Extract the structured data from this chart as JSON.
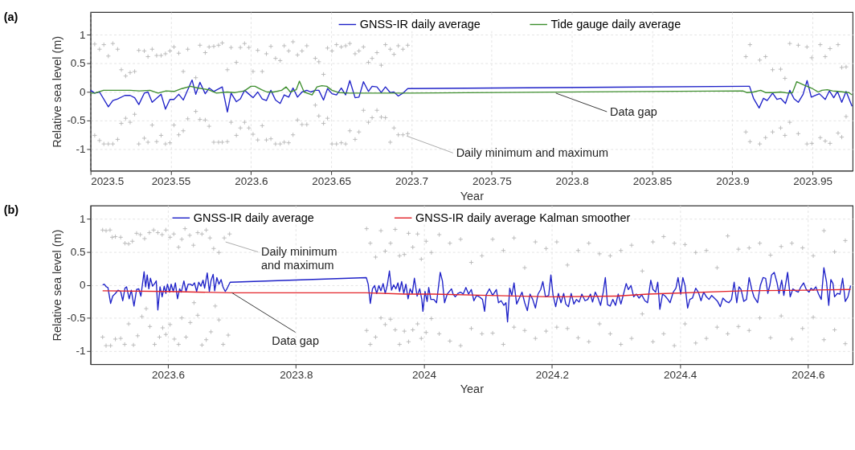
{
  "chart_data": [
    {
      "type": "line",
      "title": "(a)",
      "xlabel": "Year",
      "ylabel": "Relative sea level (m)",
      "xlim": [
        2023.5,
        2023.975
      ],
      "xticks": [
        2023.5,
        2023.55,
        2023.6,
        2023.65,
        2023.7,
        2023.75,
        2023.8,
        2023.85,
        2023.9,
        2023.95
      ],
      "ylim": [
        -1.38,
        1.4
      ],
      "yticks": [
        -1,
        -0.5,
        0,
        0.5,
        1
      ],
      "grid": true,
      "legend": "top",
      "series": [
        {
          "type": "scatter",
          "marker": "cross",
          "color": "#b4b4b4",
          "x": [
            2023.5026,
            2023.5056,
            2023.5083,
            2023.5111,
            2023.5139,
            2023.5169,
            2023.5192,
            2023.5219,
            2023.5247,
            2023.5275,
            2023.5301,
            2023.5335,
            2023.5358,
            2023.5384,
            2023.5412,
            2023.544,
            2023.5467,
            2023.5495,
            2023.552,
            2023.555,
            2023.5578,
            2023.5606,
            2023.5656,
            2023.5682,
            2023.5715,
            2023.5739,
            2023.5768,
            2023.5798,
            2023.5821,
            2023.5853,
            2023.5876,
            2023.5909,
            2023.5934,
            2023.596,
            2023.5987,
            2023.6013,
            2023.6042,
            2023.607,
            2023.6096,
            2023.6124,
            2023.6153,
            2023.6182,
            2023.6207,
            2023.6235,
            2023.6262,
            2023.629,
            2023.6318,
            2023.6348,
            2023.6401,
            2023.6423,
            2023.6452,
            2023.6477,
            2023.6505,
            2023.6533,
            2023.6563,
            2023.659,
            2023.6616,
            2023.6649,
            2023.6673,
            2023.6701,
            2023.6732,
            2023.6755,
            2023.6785,
            2023.6812,
            2023.6838,
            2023.6868,
            2023.6891,
            2023.6918,
            2023.6947,
            2023.6977,
            2023.9084,
            2023.911,
            2023.9171,
            2023.9207,
            2023.9251,
            2023.9301,
            2023.9328,
            2023.9358,
            2023.9411,
            2023.9465,
            2023.9495,
            2023.9548,
            2023.9579,
            2023.9609,
            2023.9659,
            2023.9682,
            2023.9709
          ],
          "values": [
            0.84,
            0.75,
            0.83,
            0.63,
            0.85,
            0.75,
            0.39,
            0.28,
            0.34,
            0.36,
            0.73,
            0.72,
            0.62,
            0.75,
            0.64,
            0.64,
            0.67,
            0.72,
            0.79,
            0.68,
            0.36,
            0.75,
            0.25,
            0.82,
            0.69,
            0.79,
            0.8,
            0.82,
            0.86,
            0.39,
            0.78,
            0.52,
            0.78,
            0.85,
            0.78,
            0.36,
            0.73,
            0.36,
            0.67,
            0.8,
            0.59,
            0.55,
            0.81,
            0.72,
            0.88,
            0.65,
            0.72,
            0.81,
            0.59,
            0.53,
            0.31,
            0.77,
            0.72,
            0.83,
            0.79,
            0.81,
            0.85,
            0.67,
            0.72,
            0.79,
            0.52,
            0.59,
            0.69,
            0.47,
            0.83,
            0.75,
            0.66,
            0.81,
            0.75,
            0.82,
            0.62,
            0.83,
            0.56,
            0.62,
            0.39,
            0.4,
            0.24,
            0.85,
            0.82,
            0.79,
            0.6,
            0.83,
            0.62,
            0.76,
            0.83,
            0.43,
            0.44
          ]
        },
        {
          "type": "scatter",
          "marker": "cross",
          "color": "#b4b4b4",
          "x": [
            2023.5026,
            2023.5056,
            2023.5083,
            2023.5111,
            2023.5139,
            2023.5169,
            2023.5192,
            2023.5219,
            2023.5247,
            2023.5275,
            2023.5301,
            2023.5335,
            2023.5358,
            2023.5384,
            2023.5412,
            2023.544,
            2023.5467,
            2023.5495,
            2023.552,
            2023.555,
            2023.5578,
            2023.5606,
            2023.5656,
            2023.5682,
            2023.5715,
            2023.5739,
            2023.5768,
            2023.5798,
            2023.5821,
            2023.5853,
            2023.5876,
            2023.5909,
            2023.5934,
            2023.596,
            2023.5987,
            2023.6013,
            2023.6042,
            2023.607,
            2023.6096,
            2023.6124,
            2023.6153,
            2023.6182,
            2023.6207,
            2023.6235,
            2023.6262,
            2023.629,
            2023.6318,
            2023.6348,
            2023.6401,
            2023.6423,
            2023.6452,
            2023.6477,
            2023.6505,
            2023.6533,
            2023.6563,
            2023.659,
            2023.6616,
            2023.6649,
            2023.6673,
            2023.6701,
            2023.6732,
            2023.6755,
            2023.6785,
            2023.6812,
            2023.6838,
            2023.6868,
            2023.6891,
            2023.6918,
            2023.6947,
            2023.6977,
            2023.9084,
            2023.911,
            2023.9171,
            2023.9207,
            2023.9251,
            2023.9301,
            2023.9328,
            2023.9358,
            2023.9411,
            2023.9465,
            2023.9495,
            2023.9548,
            2023.9579,
            2023.9609,
            2023.9659,
            2023.9682,
            2023.9709
          ],
          "values": [
            -0.76,
            -0.85,
            -0.91,
            -0.91,
            -0.91,
            -0.83,
            -0.55,
            -0.46,
            -0.53,
            -0.39,
            -0.91,
            -0.81,
            -0.88,
            -0.58,
            -0.87,
            -0.76,
            -0.91,
            -0.89,
            -0.58,
            -0.75,
            -0.68,
            -0.47,
            -0.34,
            -0.48,
            -0.49,
            -0.6,
            -0.88,
            -0.88,
            -0.88,
            -0.87,
            -0.53,
            -0.76,
            -0.63,
            -0.53,
            -0.63,
            -0.74,
            -0.84,
            -0.59,
            -0.84,
            -0.82,
            -0.91,
            -0.91,
            -0.88,
            -0.89,
            -0.75,
            -0.49,
            -0.57,
            -0.57,
            -0.23,
            -0.42,
            -0.55,
            -0.46,
            -0.91,
            -0.91,
            -0.89,
            -0.91,
            -0.68,
            -0.83,
            -0.7,
            -0.32,
            -0.53,
            -0.45,
            -0.32,
            -0.44,
            -0.45,
            -0.88,
            -0.63,
            -0.75,
            -0.75,
            -0.73,
            -0.7,
            -0.87,
            -0.91,
            -0.8,
            -0.7,
            -0.63,
            -0.76,
            -0.53,
            -0.73,
            -0.91,
            -0.9,
            -0.8,
            -0.86,
            -0.9,
            -0.72,
            -0.79,
            -0.43
          ]
        },
        {
          "name": "GNSS-IR daily average",
          "color": "#1f22c8",
          "x": [
            2023.5,
            2023.5026,
            2023.5056,
            2023.5111,
            2023.5139,
            2023.5169,
            2023.5214,
            2023.5247,
            2023.5275,
            2023.5301,
            2023.5335,
            2023.5358,
            2023.5384,
            2023.544,
            2023.5467,
            2023.5495,
            2023.552,
            2023.555,
            2023.5578,
            2023.5633,
            2023.5656,
            2023.5682,
            2023.5715,
            2023.5739,
            2023.5768,
            2023.5821,
            2023.5853,
            2023.5876,
            2023.5909,
            2023.5934,
            2023.596,
            2023.5984,
            2023.6013,
            2023.6042,
            2023.607,
            2023.6096,
            2023.6124,
            2023.6153,
            2023.6182,
            2023.6207,
            2023.6235,
            2023.6262,
            2023.629,
            2023.6318,
            2023.6348,
            2023.6373,
            2023.6401,
            2023.6423,
            2023.6452,
            2023.6477,
            2023.6505,
            2023.6533,
            2023.6563,
            2023.659,
            2023.6616,
            2023.6649,
            2023.6673,
            2023.6701,
            2023.6732,
            2023.6755,
            2023.6785,
            2023.6812,
            2023.6838,
            2023.6868,
            2023.6891,
            2023.6918,
            2023.6947,
            2023.6977,
            2023.909,
            2023.9107,
            2023.9132,
            2023.9167,
            2023.9194,
            2023.9217,
            2023.9251,
            2023.9278,
            2023.9301,
            2023.9331,
            2023.9358,
            2023.9385,
            2023.9411,
            2023.9441,
            2023.9466,
            2023.9492,
            2023.9542,
            2023.9579,
            2023.9605,
            2023.9632,
            2023.9655,
            2023.9682,
            2023.9709,
            2023.9746
          ],
          "values": [
            0.03,
            -0.02,
            0,
            -0.26,
            -0.15,
            -0.12,
            -0.06,
            -0.06,
            -0.1,
            -0.22,
            -0.02,
            0,
            -0.18,
            -0.04,
            -0.3,
            -0.13,
            -0.13,
            -0.04,
            -0.14,
            0.21,
            -0.04,
            0.17,
            -0.03,
            0.07,
            0.01,
            0.09,
            -0.35,
            -0.02,
            -0.17,
            -0.12,
            0.03,
            -0.03,
            -0.1,
            0,
            -0.12,
            -0.15,
            0.03,
            -0.14,
            -0.2,
            -0.05,
            -0.09,
            0.07,
            -0.09,
            0,
            0.03,
            0,
            0.03,
            0.03,
            -0.14,
            0.06,
            -0.03,
            -0.05,
            0.07,
            -0.05,
            0.2,
            -0.1,
            -0.09,
            0.18,
            0.01,
            0.1,
            0.09,
            -0.01,
            0.09,
            -0.01,
            0,
            -0.07,
            -0.02,
            0.06,
            0.1,
            0.1,
            -0.11,
            -0.28,
            -0.11,
            -0.15,
            -0.02,
            -0.13,
            -0.11,
            -0.2,
            0.03,
            -0.12,
            -0.18,
            -0.04,
            0.2,
            -0.09,
            -0.03,
            -0.13,
            0.02,
            -0.1,
            0.01,
            -0.18,
            0.01,
            -0.25
          ]
        },
        {
          "name": "Tide gauge daily average",
          "color": "#3f8f2f",
          "x": [
            2023.5,
            2023.5026,
            2023.5081,
            2023.5139,
            2023.5189,
            2023.5247,
            2023.5305,
            2023.5371,
            2023.5421,
            2023.547,
            2023.552,
            2023.557,
            2023.5623,
            2023.5669,
            2023.5735,
            2023.5785,
            2023.5851,
            2023.5901,
            2023.5959,
            2023.6,
            2023.6025,
            2023.6066,
            2023.61,
            2023.6141,
            2023.6191,
            2023.6219,
            2023.6245,
            2023.6282,
            2023.6302,
            2023.6331,
            2023.6381,
            2023.6411,
            2023.6442,
            2023.6472,
            2023.6505,
            2023.6547,
            2023.6613,
            2023.6712,
            2023.6795,
            2023.6961,
            2023.9065,
            2023.909,
            2023.9132,
            2023.9177,
            2023.9207,
            2023.9257,
            2023.9301,
            2023.9349,
            2023.9375,
            2023.9401,
            2023.9441,
            2023.9492,
            2023.9535,
            2023.9558,
            2023.9592,
            2023.9625,
            2023.9659,
            2023.9726,
            2023.9746
          ],
          "values": [
            -0.02,
            -0.02,
            0.03,
            0.03,
            0.03,
            0.03,
            0.02,
            0.03,
            -0.02,
            0.02,
            0.01,
            0.06,
            0.1,
            0.07,
            0.04,
            -0.02,
            0,
            -0.01,
            0.02,
            0.1,
            0.1,
            0.04,
            0,
            0,
            0.03,
            0.09,
            0,
            0.04,
            0.19,
            0,
            -0.05,
            0.09,
            0.11,
            0.1,
            0.03,
            -0.01,
            -0.02,
            -0.02,
            -0.02,
            -0.02,
            0.02,
            -0.01,
            0,
            0.03,
            -0.01,
            -0.01,
            0,
            -0.02,
            -0.01,
            0.18,
            0.13,
            0.07,
            0,
            0.03,
            0.04,
            0.02,
            0.01,
            -0.01,
            -0.05
          ]
        }
      ],
      "annotations": [
        {
          "text": "Data gap",
          "x": 2023.79,
          "y": -0.02
        },
        {
          "text": "Daily minimum and maximum",
          "x": 2023.697,
          "y": -0.77
        }
      ]
    },
    {
      "type": "line",
      "title": "(b)",
      "xlabel": "Year",
      "ylabel": "Relative sea level (m)",
      "xlim": [
        2023.479,
        2024.67
      ],
      "xticks": [
        2023.6,
        2023.8,
        2024,
        2024.2,
        2024.4,
        2024.6
      ],
      "ylim": [
        -1.2,
        1.2
      ],
      "yticks": [
        -1,
        -0.5,
        0,
        0.5,
        1
      ],
      "grid": true,
      "legend": "top",
      "series": [
        {
          "type": "scatter",
          "marker": "cross",
          "color": "#b4b4b4",
          "x": [
            2023.4979,
            2023.5033,
            2023.5095,
            2023.5129,
            2023.5178,
            2023.5261,
            2023.5328,
            2023.5386,
            2023.5444,
            2023.551,
            2023.5568,
            2023.5635,
            2023.571,
            2023.5776,
            2023.5842,
            2023.5909,
            2023.5967,
            2023.6033,
            2023.6091,
            2023.6166,
            2023.6216,
            2023.6266,
            2023.634,
            2023.6398,
            2023.6465,
            2023.6531,
            2023.6598,
            2023.6656,
            2023.6714,
            2023.6797,
            2023.688,
            2023.6963,
            2023.9104,
            2023.9162,
            2023.9245,
            2023.9328,
            2023.9395,
            2023.9478,
            2023.9552,
            2023.9619,
            2023.9694,
            2023.976,
            2023.9826,
            2023.9901,
            2023.9959,
            2024.0034,
            2024.0117,
            2024.0239,
            2024.0406,
            2024.0573,
            2024.074,
            2024.0907,
            2024.1074,
            2024.1241,
            2024.1408,
            2024.1575,
            2024.1742,
            2024.1909,
            2024.2076,
            2024.2243,
            2024.241,
            2024.2577,
            2024.2744,
            2024.2911,
            2024.3078,
            2024.3245,
            2024.3412,
            2024.3579,
            2024.3746,
            2024.3913,
            2024.408,
            2024.4247,
            2024.4414,
            2024.4581,
            2024.4748,
            2024.4915,
            2024.5082,
            2024.5249,
            2024.5416,
            2024.5583,
            2024.575,
            2024.5917,
            2024.6084,
            2024.6251,
            2024.6418,
            2024.6585
          ],
          "values": [
            0.83,
            0.82,
            0.83,
            0.72,
            0.73,
            0.72,
            0.63,
            0.62,
            0.66,
            0.78,
            0.76,
            0.7,
            0.79,
            0.83,
            0.79,
            0.76,
            0.83,
            0.72,
            0.77,
            0.57,
            0.69,
            0.85,
            0.75,
            0.6,
            0.79,
            0.77,
            0.83,
            0.71,
            0.55,
            0.49,
            0.71,
            0.77,
            0.85,
            0.63,
            0.42,
            0.82,
            0.51,
            0.63,
            0.84,
            0.44,
            0.46,
            0.78,
            0.57,
            0.77,
            0.39,
            0.66,
            0.49,
            0.76,
            0.63,
            0.69,
            0.34,
            0.44,
            0.69,
            0.52,
            0.71,
            0.26,
            0.65,
            0.55,
            0.65,
            0.3,
            0.52,
            0.63,
            0.47,
            0.44,
            0.52,
            0.6,
            0.21,
            0.65,
            0.73,
            0.63,
            0.61,
            0.49,
            0.52,
            0.26,
            0.74,
            0.54,
            0.56,
            0.63,
            0.45,
            0.58,
            0.63,
            0.56,
            0.44,
            0.82,
            0.5,
            0.67
          ]
        },
        {
          "type": "scatter",
          "marker": "cross",
          "color": "#b4b4b4",
          "x": [
            2023.4979,
            2023.5033,
            2023.5104,
            2023.5178,
            2023.5261,
            2023.5324,
            2023.5386,
            2023.5461,
            2023.5527,
            2023.5593,
            2023.566,
            2023.5718,
            2023.5792,
            2023.5867,
            2023.5917,
            2023.5967,
            2023.6033,
            2023.61,
            2023.6166,
            2023.6216,
            2023.6282,
            2023.6349,
            2023.6407,
            2023.6465,
            2023.6531,
            2023.6598,
            2023.6672,
            2023.6739,
            2023.6797,
            2023.6863,
            2023.6942,
            2023.9104,
            2023.9162,
            2023.9245,
            2023.9328,
            2023.9395,
            2023.9478,
            2023.9552,
            2023.9619,
            2023.9694,
            2023.976,
            2023.9826,
            2023.9901,
            2023.9959,
            2024.0034,
            2024.0117,
            2024.0239,
            2024.0406,
            2024.0573,
            2024.074,
            2024.0907,
            2024.1074,
            2024.1241,
            2024.1408,
            2024.1575,
            2024.1742,
            2024.1909,
            2024.2076,
            2024.2243,
            2024.241,
            2024.2577,
            2024.2744,
            2024.2911,
            2024.3078,
            2024.3245,
            2024.3412,
            2024.3579,
            2024.3746,
            2024.3913,
            2024.408,
            2024.4247,
            2024.4414,
            2024.4581,
            2024.4748,
            2024.4915,
            2024.5082,
            2024.5249,
            2024.5416,
            2024.5583,
            2024.575,
            2024.5917,
            2024.6084,
            2024.6251,
            2024.6418,
            2024.6585
          ],
          "values": [
            -0.79,
            -0.92,
            -0.92,
            -0.82,
            -0.81,
            -0.9,
            -0.59,
            -0.91,
            -0.77,
            -0.48,
            -0.36,
            -0.63,
            -0.9,
            -0.79,
            -0.65,
            -0.75,
            -0.6,
            -0.82,
            -0.9,
            -0.5,
            -0.79,
            -0.57,
            -0.27,
            -0.46,
            -0.91,
            -0.83,
            -0.71,
            -0.32,
            -0.53,
            -0.9,
            -0.76,
            -0.69,
            -0.9,
            -0.79,
            -0.5,
            -0.6,
            -0.52,
            -0.68,
            -0.9,
            -0.7,
            -0.86,
            -0.68,
            -0.59,
            -0.81,
            -0.72,
            -0.51,
            -0.74,
            -0.85,
            -0.92,
            -0.66,
            -0.74,
            -0.73,
            -0.9,
            -0.64,
            -0.69,
            -0.81,
            -0.7,
            -0.64,
            -0.66,
            -0.8,
            -0.86,
            -0.59,
            -0.74,
            -0.9,
            -0.81,
            -0.44,
            -0.86,
            -0.74,
            -0.92,
            -0.59,
            -0.88,
            -0.81,
            -0.64,
            -0.74,
            -0.63,
            -0.69,
            -0.5,
            -0.8,
            -0.47,
            -0.82,
            -0.66,
            -0.49,
            -0.83,
            -0.68,
            -0.89
          ]
        },
        {
          "name": "GNSS-IR daily average",
          "color": "#1f22c8",
          "x": [
            2023.4979,
            2023.5004,
            2023.5037,
            2023.5062,
            2023.5104,
            2023.5137,
            2023.5178,
            2023.522,
            2023.5261,
            2023.5294,
            2023.5328,
            2023.5353,
            2023.5394,
            2023.5427,
            2023.5469,
            2023.551,
            2023.5544,
            2023.5577,
            2023.5627,
            2023.5651,
            2023.5676,
            2023.5701,
            2023.5726,
            2023.5759,
            2023.5792,
            2023.5817,
            2023.5842,
            2023.5876,
            2023.5909,
            2023.5942,
            2023.5967,
            2023.5992,
            2023.6025,
            2023.605,
            2023.6083,
            2023.6116,
            2023.6149,
            2023.6183,
            2023.6208,
            2023.6249,
            2023.6282,
            2023.6315,
            2023.6349,
            2023.6382,
            2023.6415,
            2023.6448,
            2023.6481,
            2023.6515,
            2023.6548,
            2023.6573,
            2023.6614,
            2023.6647,
            2023.6672,
            2023.6706,
            2023.673,
            2023.6764,
            2023.6797,
            2023.683,
            2023.6863,
            2023.6896,
            2023.6921,
            2023.6971,
            2023.91,
            2023.9129,
            2023.9162,
            2023.9196,
            2023.9229,
            2023.9262,
            2023.9295,
            2023.9328,
            2023.9362,
            2023.9395,
            2023.9428,
            2023.9461,
            2023.9494,
            2023.9528,
            2023.9561,
            2023.9594,
            2023.9619,
            2023.9652,
            2023.9685,
            2023.9718,
            2023.9752,
            2023.9785,
            2023.9818,
            2023.9851,
            2023.9893,
            2023.9934,
            2023.9967,
            2023.9984,
            2024.0017,
            2024.005,
            2024.0075,
            2024.0108,
            2024.0155,
            2024.0197,
            2024.0255,
            2024.0289,
            2024.0322,
            2024.0364,
            2024.0406,
            2024.0431,
            2024.0456,
            2024.0489,
            2024.0531,
            2024.0573,
            2024.0614,
            2024.0656,
            2024.0698,
            2024.074,
            2024.0781,
            2024.0823,
            2024.0865,
            2024.0915,
            2024.0948,
            2024.0973,
            2024.1023,
            2024.1074,
            2024.1132,
            2024.1165,
            2024.1207,
            2024.1249,
            2024.1282,
            2024.1307,
            2024.1341,
            2024.1374,
            2024.1408,
            2024.1449,
            2024.1491,
            2024.1533,
            2024.1575,
            2024.1616,
            2024.1658,
            2024.17,
            2024.1742,
            2024.1783,
            2024.1825,
            2024.1858,
            2024.19,
            2024.195,
            2024.1984,
            2024.2017,
            2024.2059,
            2024.2101,
            2024.2142,
            2024.2184,
            2024.2217,
            2024.2259,
            2024.2301,
            2024.2343,
            2024.2384,
            2024.2426,
            2024.2468,
            2024.2518,
            2024.256,
            2024.2602,
            2024.2635,
            2024.2677,
            2024.2718,
            2024.276,
            2024.2802,
            2024.2835,
            2024.2869,
            2024.2911,
            2024.2952,
            2024.2994,
            2024.3036,
            2024.3078,
            2024.3119,
            2024.3161,
            2024.3194,
            2024.3236,
            2024.3278,
            2024.332,
            2024.3361,
            2024.3403,
            2024.3453,
            2024.3495,
            2024.3545,
            2024.3579,
            2024.362,
            2024.3654,
            2024.3687,
            2024.3729,
            2024.3771,
            2024.3812,
            2024.3846,
            2024.3896,
            2024.3938,
            2024.3971,
            2024.4013,
            2024.4046,
            2024.408,
            2024.4121,
            2024.4155,
            2024.4196,
            2024.4247,
            2024.4288,
            2024.433,
            2024.4372,
            2024.4414,
            2024.4455,
            2024.4497,
            2024.4539,
            2024.4589,
            2024.4631,
            2024.4672,
            2024.4722,
            2024.4764,
            2024.4806,
            2024.4848,
            2024.4889,
            2024.4923,
            2024.4956,
            2024.4998,
            2024.504,
            2024.5082,
            2024.5123,
            2024.5157,
            2024.5215,
            2024.5257,
            2024.5299,
            2024.534,
            2024.5374,
            2024.5407,
            2024.5432,
            2024.5474,
            2024.5516,
            2024.5549,
            2024.5591,
            2024.5624,
            2024.5683,
            2024.5724,
            2024.5766,
            2024.5808,
            2024.585,
            2024.5891,
            2024.5933,
            2024.5975,
            2024.6017,
            2024.605,
            2024.6083,
            2024.6125,
            2024.6167,
            2024.6209,
            2024.625,
            2024.6292,
            2024.6326,
            2024.6359,
            2024.6392,
            2024.6417,
            2024.6459,
            2024.6501,
            2024.6543,
            2024.6584,
            2024.6626,
            2024.6668
          ],
          "values": [
            0,
            0.01,
            -0.03,
            -0.04,
            -0.28,
            -0.17,
            -0.13,
            -0.08,
            -0.1,
            -0.24,
            -0.05,
            -0.03,
            -0.21,
            -0.08,
            -0.32,
            -0.07,
            -0.06,
            -0.17,
            0.2,
            -0.03,
            0.15,
            -0.06,
            0.1,
            -0.02,
            0.02,
            0.06,
            -0.38,
            -0.03,
            -0.18,
            -0.02,
            -0.13,
            0.01,
            -0.11,
            0.01,
            -0.1,
            0.03,
            -0.21,
            -0.06,
            -0.11,
            0.06,
            -0.1,
            0.01,
            0.01,
            -0.01,
            0.03,
            -0.1,
            0.04,
            -0.02,
            0.07,
            -0.05,
            0.18,
            -0.1,
            0.06,
            0.16,
            -0.09,
            0.11,
            0.01,
            0.08,
            -0.04,
            -0.1,
            -0.06,
            0.04,
            0.11,
            0.01,
            -0.28,
            -0.06,
            -0.01,
            -0.13,
            -0.01,
            -0.09,
            0.02,
            -0.13,
            0,
            0.21,
            -0.08,
            0,
            -0.06,
            0.03,
            -0.1,
            0.05,
            -0.13,
            0.01,
            -0.21,
            -0.06,
            -0.13,
            0.1,
            -0.17,
            -0.06,
            -0.22,
            -0.4,
            -0.1,
            -0.25,
            -0.04,
            -0.22,
            -0.22,
            -0.27,
            0.19,
            0.06,
            -0.27,
            -0.14,
            -0.09,
            -0.06,
            -0.14,
            -0.18,
            -0.13,
            -0.11,
            -0.14,
            -0.04,
            -0.14,
            -0.07,
            -0.24,
            -0.16,
            -0.18,
            -0.22,
            -0.4,
            -0.15,
            -0.06,
            -0.16,
            -0.07,
            -0.27,
            -0.24,
            -0.31,
            -0.27,
            -0.56,
            -0.05,
            -0.16,
            0.03,
            -0.29,
            -0.2,
            -0.11,
            -0.27,
            -0.39,
            -0.14,
            -0.22,
            -0.35,
            -0.14,
            -0.07,
            0.05,
            -0.18,
            -0.16,
            0.15,
            -0.15,
            -0.33,
            -0.13,
            -0.27,
            -0.13,
            -0.29,
            -0.33,
            -0.13,
            -0.29,
            -0.22,
            -0.26,
            -0.14,
            -0.24,
            -0.22,
            -0.14,
            -0.26,
            -0.11,
            -0.19,
            -0.31,
            -0.11,
            0.11,
            -0.3,
            -0.32,
            -0.22,
            -0.31,
            -0.14,
            -0.29,
            -0.14,
            0.02,
            -0.07,
            -0.01,
            -0.18,
            -0.14,
            -0.2,
            -0.15,
            -0.24,
            -0.27,
            0.07,
            -0.07,
            -0.11,
            0.04,
            -0.37,
            -0.14,
            -0.17,
            -0.22,
            -0.27,
            -0.11,
            -0.05,
            0.11,
            -0.14,
            0.11,
            -0.01,
            -0.35,
            -0.22,
            -0.2,
            -0.05,
            -0.11,
            -0.24,
            -0.11,
            -0.18,
            -0.22,
            -0.16,
            -0.2,
            -0.25,
            -0.33,
            -0.2,
            -0.25,
            -0.27,
            -0.22,
            0.04,
            -0.27,
            -0.03,
            -0.07,
            -0.25,
            -0.22,
            0.11,
            -0.07,
            -0.18,
            -0.27,
            -0.01,
            0.11,
            0.1,
            -0.13,
            0,
            0.15,
            0.19,
            0.04,
            -0.13,
            0.07,
            -0.16,
            0.19,
            -0.18,
            -0.06,
            -0.09,
            -0.11,
            -0.03,
            0.03,
            -0.07,
            -0.11,
            -0.05,
            -0.08,
            -0.03,
            -0.14,
            -0.22,
            0.26,
            0.04,
            -0.31,
            0.08,
            0.02,
            -0.18,
            -0.13,
            -0.14,
            0.1,
            -0.25,
            -0.18,
            -0.01
          ]
        },
        {
          "name": "GNSS-IR daily average Kalman smoother",
          "color": "#e3262c",
          "x": [
            2023.4979,
            2023.6,
            2023.7,
            2023.91,
            2023.97,
            2024.0155,
            2024.1,
            2024.2,
            2024.3,
            2024.35,
            2024.5,
            2024.6,
            2024.6668
          ],
          "values": [
            -0.09,
            -0.1,
            -0.12,
            -0.12,
            -0.14,
            -0.14,
            -0.16,
            -0.18,
            -0.17,
            -0.14,
            -0.09,
            -0.08,
            -0.07
          ]
        }
      ],
      "annotations": [
        {
          "text": "Daily minimum and maximum",
          "x": 2023.69,
          "y": 0.65
        },
        {
          "text": "Data gap",
          "x": 2023.7,
          "y": -0.12
        }
      ]
    }
  ]
}
